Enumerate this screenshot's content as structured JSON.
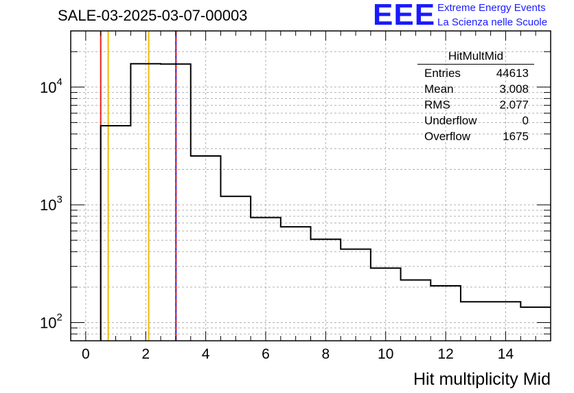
{
  "title": "SALE-03-2025-03-07-00003",
  "logo": {
    "mark": "EEE",
    "line1": "Extreme Energy Events",
    "line2": "La Scienza nelle Scuole"
  },
  "stats": {
    "name": "HitMultMid",
    "rows": [
      {
        "label": "Entries",
        "value": "44613"
      },
      {
        "label": "Mean",
        "value": "3.008"
      },
      {
        "label": "RMS",
        "value": "2.077"
      },
      {
        "label": "Underflow",
        "value": "0"
      },
      {
        "label": "Overflow",
        "value": "1675"
      }
    ]
  },
  "chart_data": {
    "type": "histogram",
    "title": "SALE-03-2025-03-07-00003",
    "xlabel": "Hit multiplicity Mid",
    "ylabel": "",
    "yscale": "log",
    "xlim": [
      -0.5,
      15.5
    ],
    "ylim": [
      70,
      30000
    ],
    "bin_edges": [
      -0.5,
      0.5,
      1.5,
      2.5,
      3.5,
      4.5,
      5.5,
      6.5,
      7.5,
      8.5,
      9.5,
      10.5,
      11.5,
      12.5,
      13.5,
      14.5,
      15.5
    ],
    "values": [
      0,
      4700,
      15800,
      15700,
      2600,
      1180,
      780,
      650,
      510,
      420,
      290,
      230,
      205,
      150,
      150,
      135
    ],
    "x_ticks": [
      0,
      2,
      4,
      6,
      8,
      10,
      12,
      14
    ],
    "x_tick_labels": [
      "0",
      "2",
      "4",
      "6",
      "8",
      "10",
      "12",
      "14"
    ],
    "y_ticks": [
      100,
      1000,
      10000
    ],
    "y_tick_labels": [
      {
        "base": "10",
        "exp": "2"
      },
      {
        "base": "10",
        "exp": "3"
      },
      {
        "base": "10",
        "exp": "4"
      }
    ],
    "grid": true,
    "vertical_lines": [
      {
        "x": 0.5,
        "color": "#e8201a",
        "style": "solid"
      },
      {
        "x": 0.75,
        "color": "#f2b800",
        "style": "solid"
      },
      {
        "x": 2.1,
        "color": "#f2b800",
        "style": "solid"
      },
      {
        "x": 3.008,
        "color": "#e8201a",
        "style": "dashed"
      }
    ]
  }
}
